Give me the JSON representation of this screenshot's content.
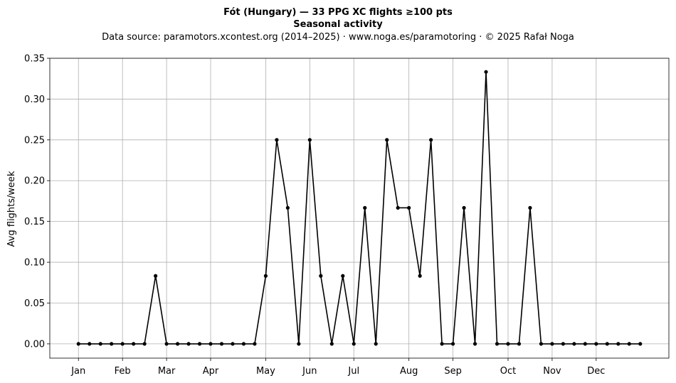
{
  "chart_data": {
    "type": "line",
    "title": "Fót (Hungary)  —  33 PPG XC flights ≥100 pts",
    "subtitle": "Seasonal activity",
    "source": "Data source: paramotors.xcontest.org (2014–2025)  ·  www.noga.es/paramotoring  ·  © 2025 Rafał Noga",
    "xlabel": "",
    "ylabel": "Avg flights/week",
    "ylim": [
      -0.0175,
      0.35
    ],
    "yticks": [
      0.0,
      0.05,
      0.1,
      0.15,
      0.2,
      0.25,
      0.3,
      0.35
    ],
    "ytick_labels": [
      "0.00",
      "0.05",
      "0.10",
      "0.15",
      "0.20",
      "0.25",
      "0.30",
      "0.35"
    ],
    "xlim": [
      -2.6,
      53.6
    ],
    "xticks": [
      0,
      4,
      8,
      12,
      17,
      21,
      25,
      30,
      34,
      39,
      43,
      47
    ],
    "xtick_labels": [
      "Jan",
      "Feb",
      "Mar",
      "Apr",
      "May",
      "Jun",
      "Jul",
      "Aug",
      "Sep",
      "Oct",
      "Nov",
      "Dec"
    ],
    "grid": true,
    "color": "#000000",
    "x": [
      0,
      1,
      2,
      3,
      4,
      5,
      6,
      7,
      8,
      9,
      10,
      11,
      12,
      13,
      14,
      15,
      16,
      17,
      18,
      19,
      20,
      21,
      22,
      23,
      24,
      25,
      26,
      27,
      28,
      29,
      30,
      31,
      32,
      33,
      34,
      35,
      36,
      37,
      38,
      39,
      40,
      41,
      42,
      43,
      44,
      45,
      46,
      47,
      48,
      49,
      50,
      51
    ],
    "values": [
      0,
      0,
      0,
      0,
      0,
      0,
      0,
      0.0833,
      0,
      0,
      0,
      0,
      0,
      0,
      0,
      0,
      0,
      0.0833,
      0.25,
      0.1667,
      0,
      0.25,
      0.0833,
      0,
      0.0833,
      0,
      0.1667,
      0,
      0.25,
      0.1667,
      0.1667,
      0.0833,
      0.25,
      0,
      0,
      0.1667,
      0,
      0.3333,
      0,
      0,
      0,
      0.1667,
      0,
      0,
      0,
      0,
      0,
      0,
      0,
      0,
      0,
      0
    ]
  }
}
